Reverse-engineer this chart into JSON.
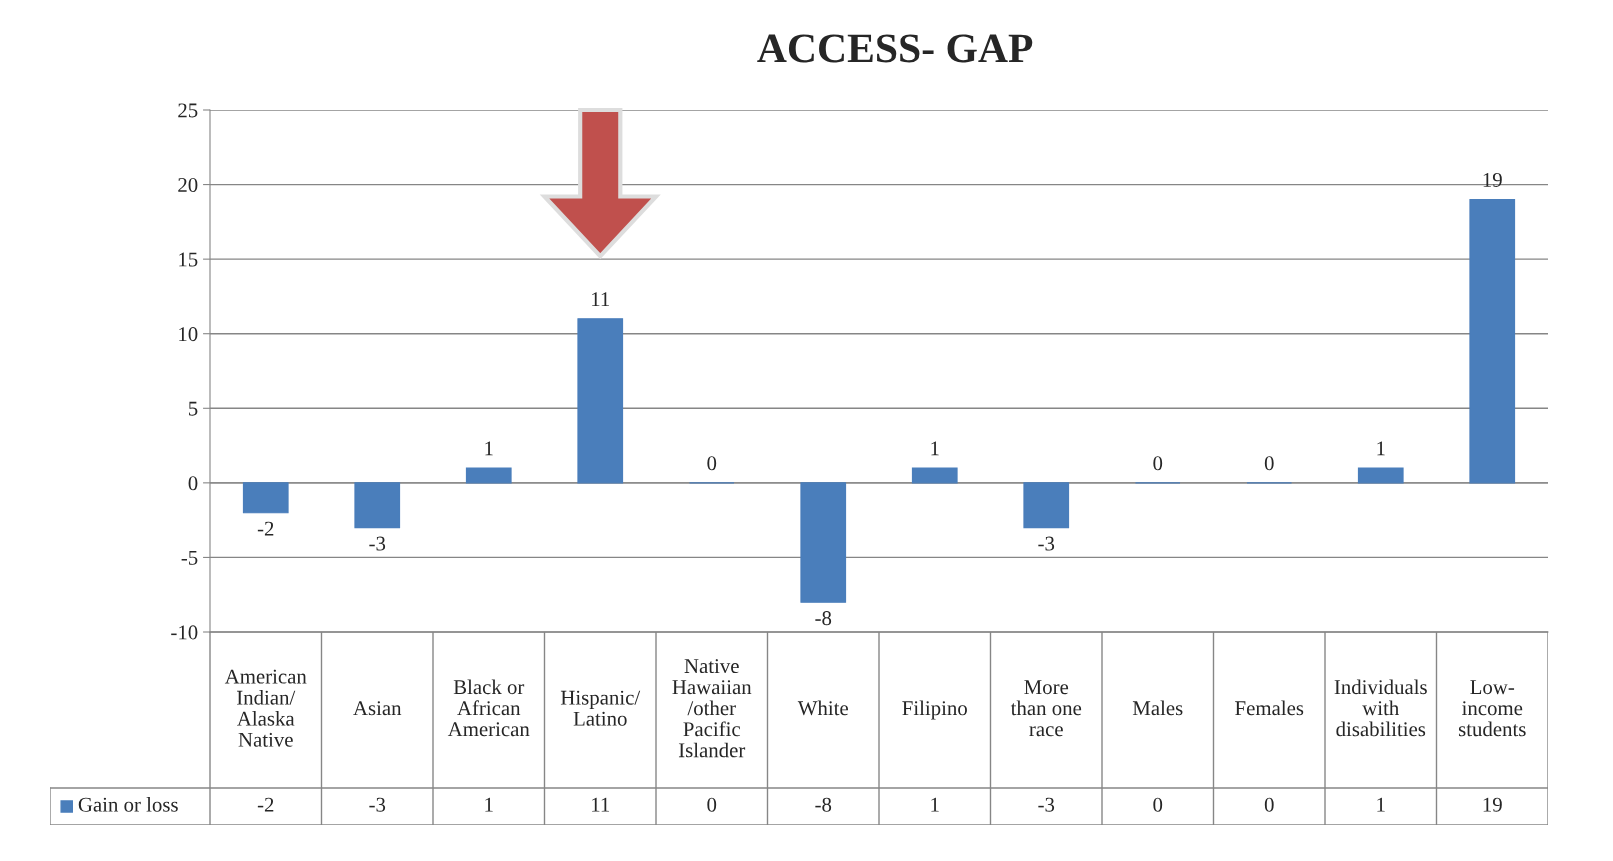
{
  "chart_data": {
    "type": "bar",
    "title": "ACCESS- GAP",
    "categories": [
      "American\nIndian/\nAlaska\nNative",
      "Asian",
      "Black or\nAfrican\nAmerican",
      "Hispanic/\nLatino",
      "Native\nHawaiian\n/other\nPacific\nIslander",
      "White",
      "Filipino",
      "More\nthan one\nrace",
      "Males",
      "Females",
      "Individuals\nwith\ndisabilities",
      "Low-\nincome\nstudents"
    ],
    "series": [
      {
        "name": "Gain or loss",
        "color": "#4a7ebb",
        "values": [
          -2,
          -3,
          1,
          11,
          0,
          -8,
          1,
          -3,
          0,
          0,
          1,
          19
        ],
        "value_labels": [
          "-2",
          "-3",
          "1",
          "11",
          "0",
          "-8",
          "1",
          "-3",
          "0",
          "0",
          "1",
          "19"
        ]
      }
    ],
    "annotations": [
      "-2",
      "-3",
      "1",
      "11",
      "0",
      "-8",
      "1",
      "-3",
      "0",
      "0",
      "1",
      "19"
    ],
    "ylim": [
      -10,
      25
    ],
    "yticks": [
      -10,
      -5,
      0,
      5,
      10,
      15,
      20,
      25
    ],
    "grid": "y",
    "legend": "bottom"
  }
}
